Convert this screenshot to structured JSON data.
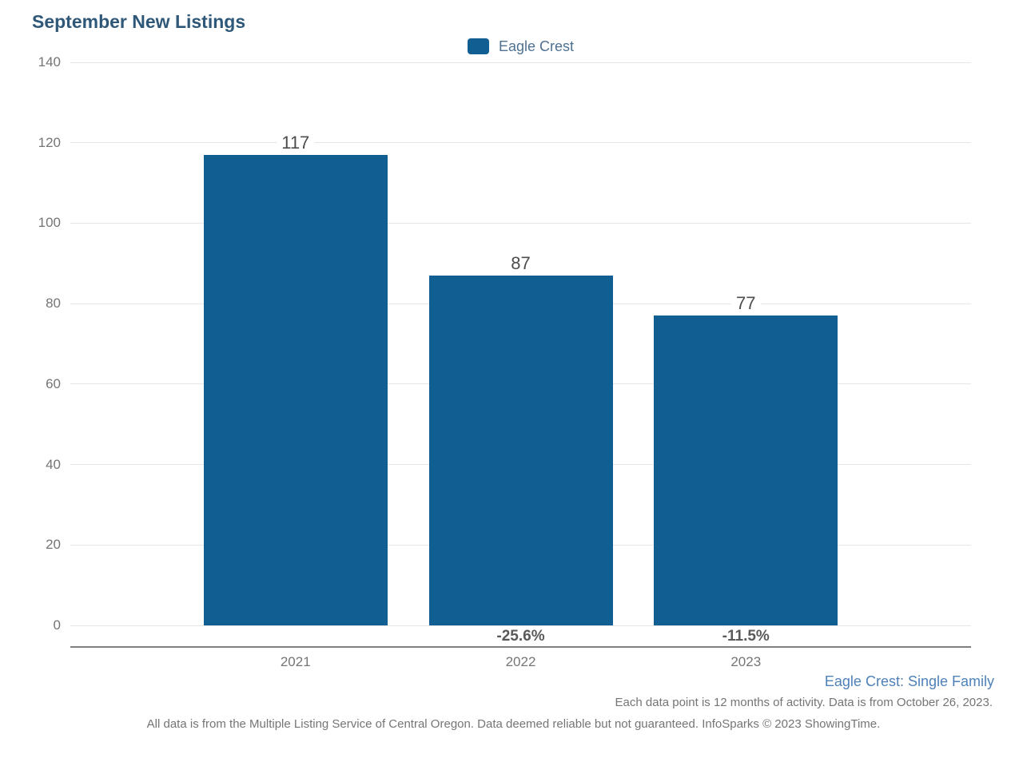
{
  "title": "September New Listings",
  "legend": {
    "label": "Eagle Crest"
  },
  "chart_data": {
    "type": "bar",
    "title": "September New Listings",
    "categories": [
      "2021",
      "2022",
      "2023"
    ],
    "series": [
      {
        "name": "Eagle Crest",
        "values": [
          117,
          87,
          77
        ]
      }
    ],
    "value_labels": [
      "117",
      "87",
      "77"
    ],
    "pct_change_labels": [
      "",
      "-25.6%",
      "-11.5%"
    ],
    "xlabel": "",
    "ylabel": "",
    "ylim": [
      0,
      140
    ],
    "yticks": [
      0,
      20,
      40,
      60,
      80,
      100,
      120,
      140
    ],
    "grid": true,
    "legend_position": "top-center",
    "bar_color": "#115e92"
  },
  "footer": {
    "series_note": "Eagle Crest: Single Family",
    "data_note": "Each data point is 12 months of activity. Data is from October 26, 2023.",
    "disclaimer": "All data is from the Multiple Listing Service of Central Oregon. Data deemed reliable but not guaranteed. InfoSparks © 2023 ShowingTime."
  },
  "colors": {
    "bar": "#115e92",
    "title": "#2f5878",
    "legend_text": "#4f7191",
    "footer_blue": "#4e81b8",
    "gray_text": "#757575",
    "value_text": "#4d4d4d",
    "pct_text": "#595959",
    "gridline": "#e6e6e6",
    "axis_line": "#7f7f7f"
  }
}
